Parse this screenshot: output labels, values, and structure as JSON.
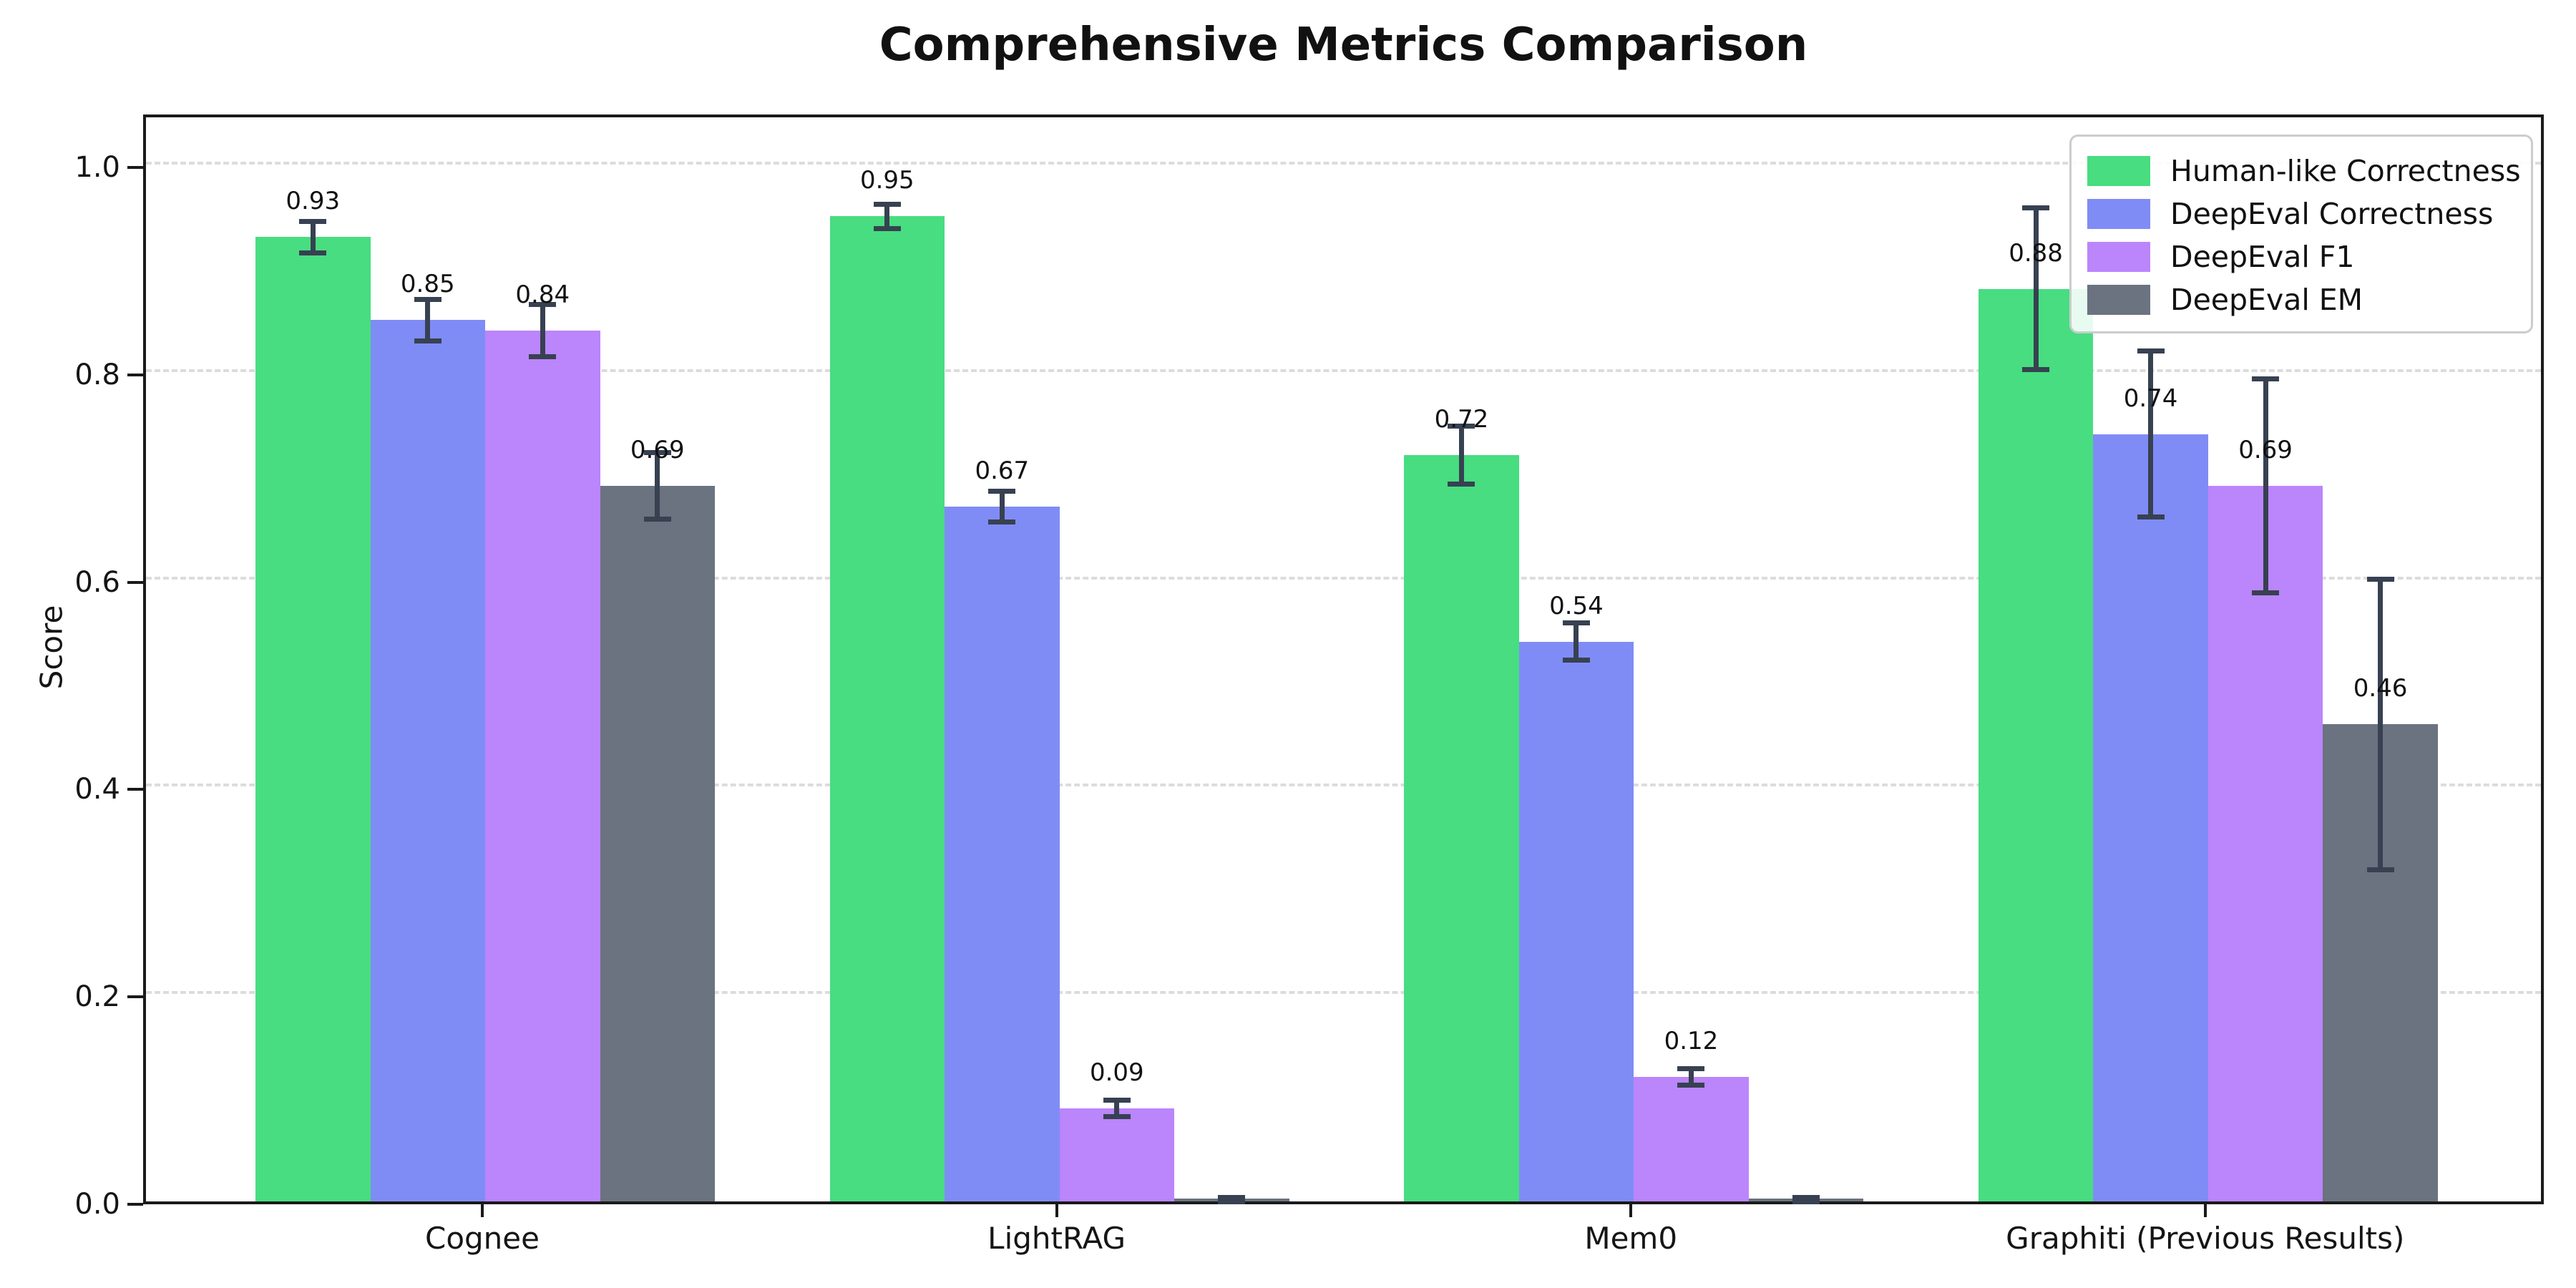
{
  "chart_data": {
    "type": "bar",
    "title": "Comprehensive Metrics Comparison",
    "ylabel": "Score",
    "xlabel": "",
    "categories": [
      "Cognee",
      "LightRAG",
      "Mem0",
      "Graphiti (Previous Results)"
    ],
    "series": [
      {
        "name": "Human-like Correctness",
        "color": "#47dd80",
        "values": [
          0.93,
          0.95,
          0.72,
          0.88
        ],
        "errors": [
          0.015,
          0.012,
          0.028,
          0.078
        ],
        "labels": [
          "0.93",
          "0.95",
          "0.72",
          "0.88"
        ]
      },
      {
        "name": "DeepEval Correctness",
        "color": "#808cf6",
        "values": [
          0.85,
          0.67,
          0.54,
          0.74
        ],
        "errors": [
          0.02,
          0.015,
          0.018,
          0.08
        ],
        "labels": [
          "0.85",
          "0.67",
          "0.54",
          "0.74"
        ]
      },
      {
        "name": "DeepEval F1",
        "color": "#bb85fb",
        "values": [
          0.84,
          0.09,
          0.12,
          0.69
        ],
        "errors": [
          0.025,
          0.008,
          0.008,
          0.103
        ],
        "labels": [
          "0.84",
          "0.09",
          "0.12",
          "0.69"
        ]
      },
      {
        "name": "DeepEval EM",
        "color": "#6b7280",
        "values": [
          0.69,
          0.0,
          0.0,
          0.46
        ],
        "errors": [
          0.032,
          0.004,
          0.004,
          0.14
        ],
        "labels": [
          "0.69",
          "",
          "",
          "0.46"
        ]
      }
    ],
    "ytick_labels": [
      "0.0",
      "0.2",
      "0.4",
      "0.6",
      "0.8",
      "1.0"
    ],
    "ytick_values": [
      0,
      0.2,
      0.4,
      0.6,
      0.8,
      1.0
    ],
    "ylim": [
      0,
      1.051
    ],
    "grid": "horizontal-dashed",
    "legend_position": "upper right",
    "error_bar_color": "#374151",
    "axis_color": "#1a1a1a",
    "grid_color": "#dcdcdc"
  }
}
